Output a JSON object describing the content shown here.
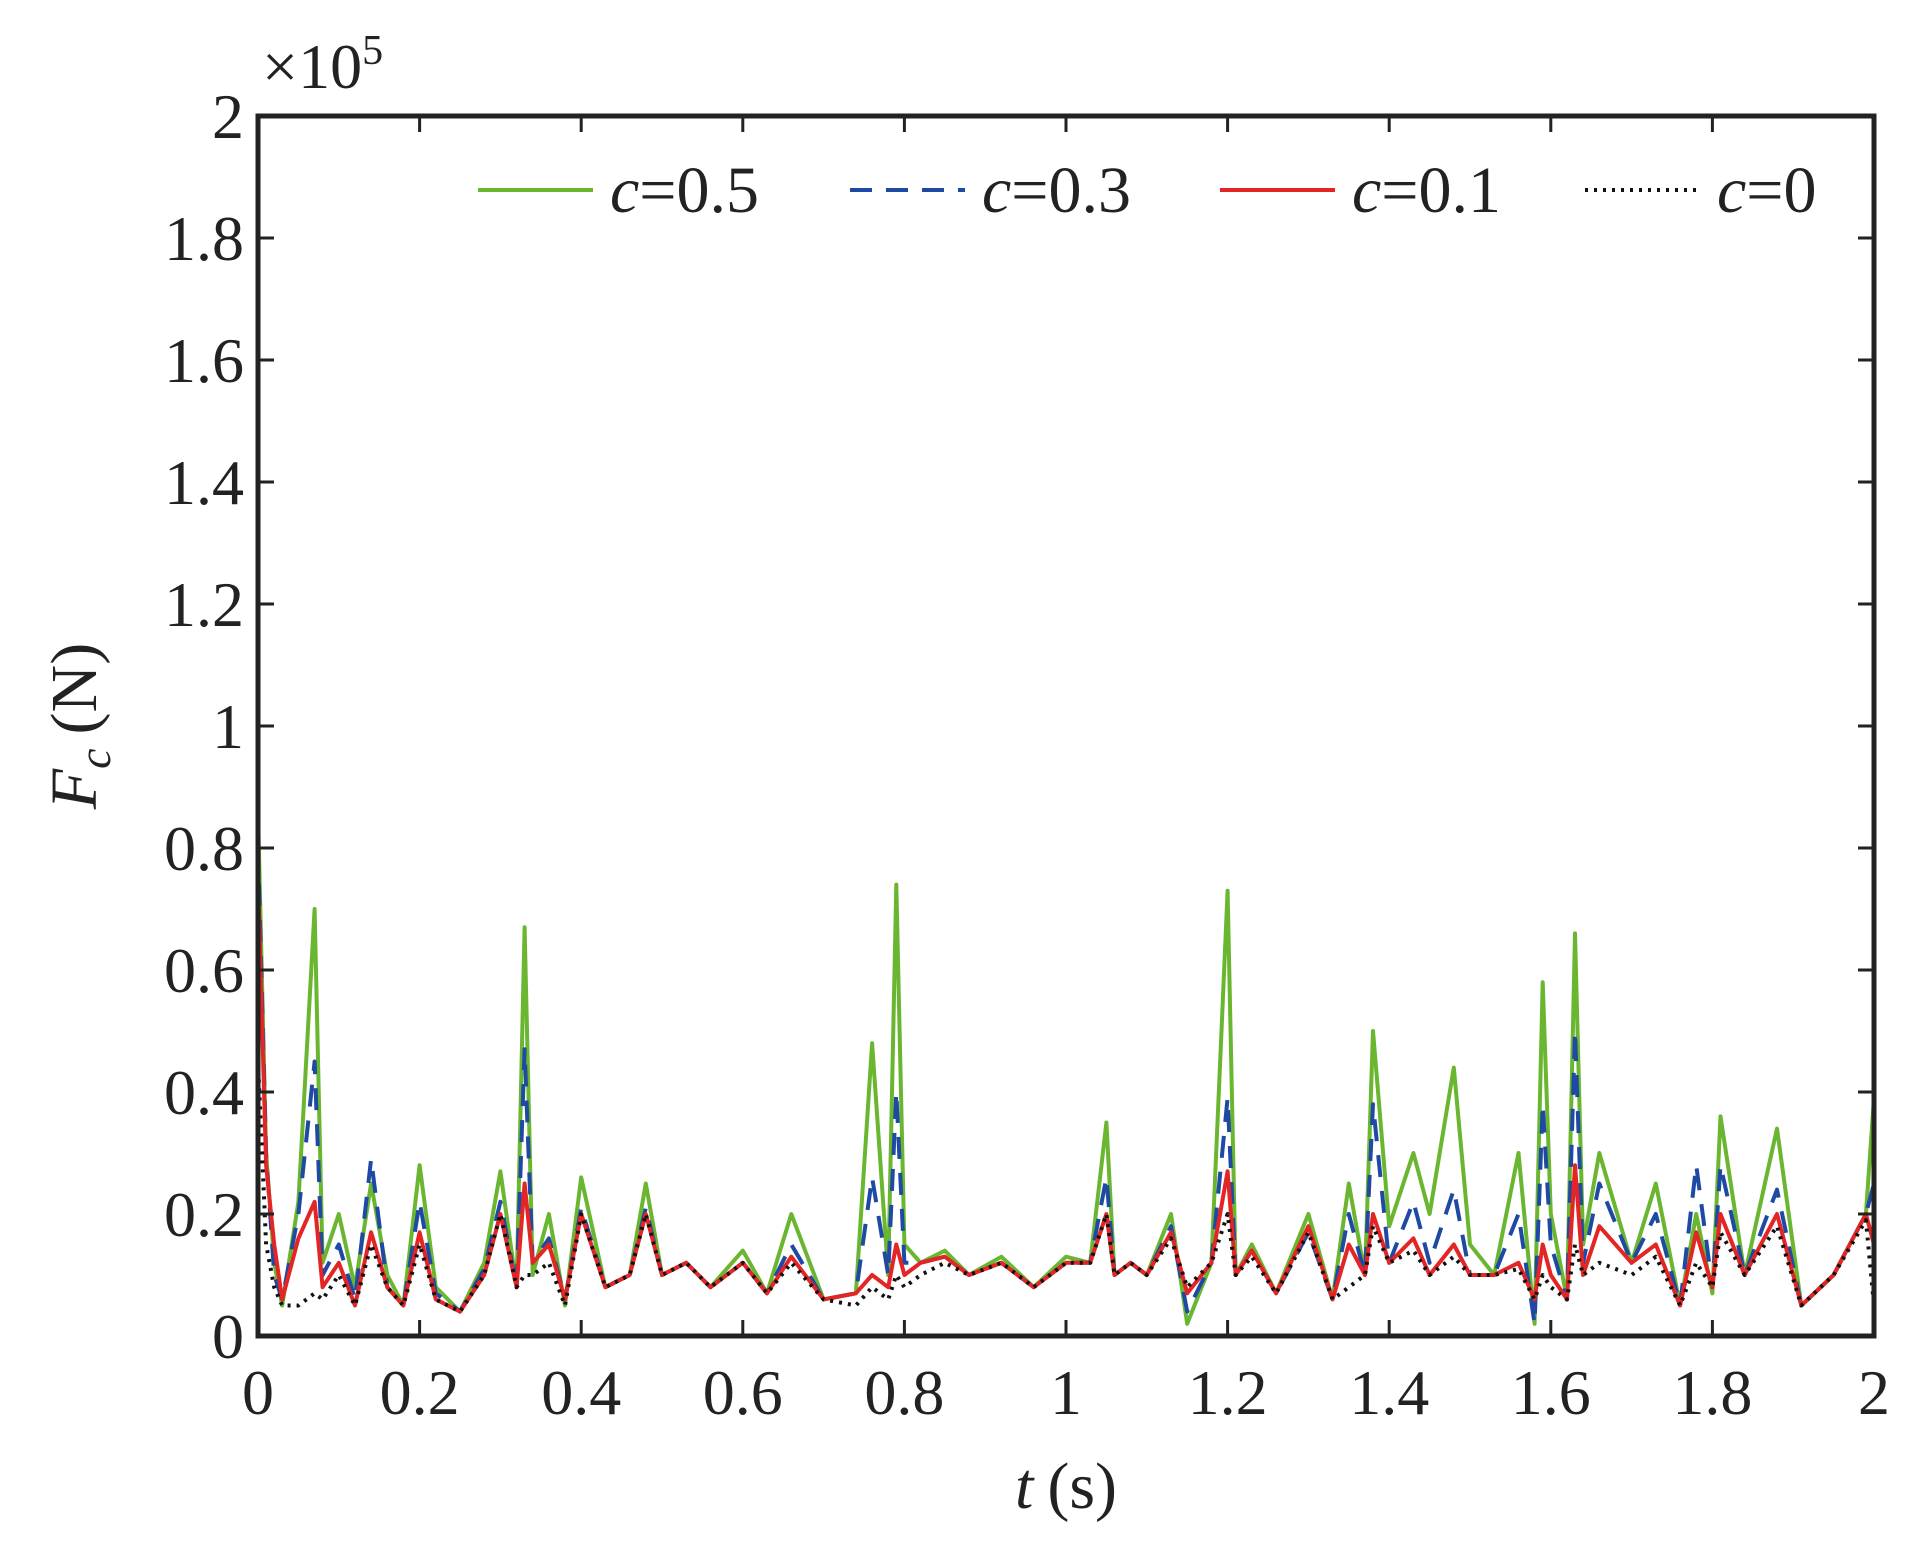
{
  "chart_data": {
    "type": "line",
    "title": "",
    "xlabel": {
      "var": "t",
      "unit": "(s)"
    },
    "ylabel": {
      "var": "F",
      "sub": "c",
      "unit": "(N)"
    },
    "multiplier": {
      "prefix": "×10",
      "exp": "5"
    },
    "xlim": [
      0,
      2
    ],
    "ylim": [
      0,
      2
    ],
    "xticks": [
      0,
      0.2,
      0.4,
      0.6,
      0.8,
      1,
      1.2,
      1.4,
      1.6,
      1.8,
      2
    ],
    "xtick_labels": [
      "0",
      "0.2",
      "0.4",
      "0.6",
      "0.8",
      "1",
      "1.2",
      "1.4",
      "1.6",
      "1.8",
      "2"
    ],
    "yticks": [
      0,
      0.2,
      0.4,
      0.6,
      0.8,
      1,
      1.2,
      1.4,
      1.6,
      1.8,
      2
    ],
    "ytick_labels": [
      "0",
      "0.2",
      "0.4",
      "0.6",
      "0.8",
      "1",
      "1.2",
      "1.4",
      "1.6",
      "1.8",
      "2"
    ],
    "grid": false,
    "legend_position": "top-right",
    "series": [
      {
        "name": "c=0.5",
        "var": "c",
        "label": "=0.5",
        "color": "#6ab631",
        "style": "solid",
        "x": [
          0,
          0.01,
          0.02,
          0.03,
          0.05,
          0.07,
          0.08,
          0.1,
          0.12,
          0.14,
          0.16,
          0.18,
          0.2,
          0.22,
          0.25,
          0.28,
          0.3,
          0.32,
          0.33,
          0.34,
          0.36,
          0.38,
          0.4,
          0.43,
          0.46,
          0.48,
          0.5,
          0.53,
          0.56,
          0.6,
          0.63,
          0.66,
          0.7,
          0.74,
          0.76,
          0.78,
          0.79,
          0.8,
          0.82,
          0.85,
          0.88,
          0.92,
          0.96,
          1,
          1.03,
          1.05,
          1.06,
          1.08,
          1.1,
          1.13,
          1.15,
          1.18,
          1.2,
          1.21,
          1.23,
          1.26,
          1.3,
          1.33,
          1.35,
          1.37,
          1.38,
          1.4,
          1.43,
          1.45,
          1.48,
          1.5,
          1.53,
          1.56,
          1.58,
          1.59,
          1.6,
          1.62,
          1.63,
          1.64,
          1.66,
          1.7,
          1.73,
          1.76,
          1.78,
          1.8,
          1.81,
          1.84,
          1.88,
          1.91,
          1.95,
          1.99,
          2
        ],
        "y": [
          0.86,
          0.3,
          0.12,
          0.05,
          0.22,
          0.7,
          0.12,
          0.2,
          0.08,
          0.25,
          0.1,
          0.05,
          0.28,
          0.08,
          0.04,
          0.12,
          0.27,
          0.08,
          0.67,
          0.1,
          0.2,
          0.05,
          0.26,
          0.08,
          0.1,
          0.25,
          0.1,
          0.12,
          0.08,
          0.14,
          0.07,
          0.2,
          0.06,
          0.07,
          0.48,
          0.1,
          0.74,
          0.15,
          0.12,
          0.14,
          0.1,
          0.13,
          0.08,
          0.13,
          0.12,
          0.35,
          0.1,
          0.12,
          0.1,
          0.2,
          0.02,
          0.12,
          0.73,
          0.1,
          0.15,
          0.07,
          0.2,
          0.06,
          0.25,
          0.1,
          0.5,
          0.18,
          0.3,
          0.2,
          0.44,
          0.15,
          0.1,
          0.3,
          0.02,
          0.58,
          0.2,
          0.06,
          0.66,
          0.15,
          0.3,
          0.12,
          0.25,
          0.05,
          0.2,
          0.07,
          0.36,
          0.1,
          0.34,
          0.05,
          0.1,
          0.2,
          0.39
        ]
      },
      {
        "name": "c=0.3",
        "var": "c",
        "label": "=0.3",
        "color": "#1f4aa3",
        "style": "dashed",
        "x": [
          0,
          0.01,
          0.02,
          0.03,
          0.05,
          0.07,
          0.08,
          0.1,
          0.12,
          0.14,
          0.16,
          0.18,
          0.2,
          0.22,
          0.25,
          0.28,
          0.3,
          0.32,
          0.33,
          0.34,
          0.36,
          0.38,
          0.4,
          0.43,
          0.46,
          0.48,
          0.5,
          0.53,
          0.56,
          0.6,
          0.63,
          0.66,
          0.7,
          0.74,
          0.76,
          0.78,
          0.79,
          0.8,
          0.82,
          0.85,
          0.88,
          0.92,
          0.96,
          1,
          1.03,
          1.05,
          1.06,
          1.08,
          1.1,
          1.13,
          1.15,
          1.18,
          1.2,
          1.21,
          1.23,
          1.26,
          1.3,
          1.33,
          1.35,
          1.37,
          1.38,
          1.4,
          1.43,
          1.45,
          1.48,
          1.5,
          1.53,
          1.56,
          1.58,
          1.59,
          1.6,
          1.62,
          1.63,
          1.64,
          1.66,
          1.7,
          1.73,
          1.76,
          1.78,
          1.8,
          1.81,
          1.84,
          1.88,
          1.91,
          1.95,
          1.99,
          2
        ],
        "y": [
          0.8,
          0.3,
          0.1,
          0.06,
          0.2,
          0.45,
          0.1,
          0.15,
          0.06,
          0.29,
          0.08,
          0.05,
          0.22,
          0.07,
          0.04,
          0.11,
          0.22,
          0.08,
          0.47,
          0.12,
          0.16,
          0.06,
          0.21,
          0.08,
          0.1,
          0.21,
          0.1,
          0.12,
          0.08,
          0.12,
          0.07,
          0.15,
          0.06,
          0.07,
          0.26,
          0.1,
          0.4,
          0.12,
          0.12,
          0.13,
          0.1,
          0.12,
          0.08,
          0.12,
          0.12,
          0.26,
          0.1,
          0.12,
          0.1,
          0.18,
          0.04,
          0.12,
          0.39,
          0.1,
          0.14,
          0.07,
          0.17,
          0.06,
          0.2,
          0.1,
          0.38,
          0.12,
          0.22,
          0.12,
          0.24,
          0.1,
          0.1,
          0.2,
          0.02,
          0.38,
          0.15,
          0.06,
          0.5,
          0.12,
          0.25,
          0.12,
          0.2,
          0.05,
          0.28,
          0.08,
          0.28,
          0.1,
          0.24,
          0.05,
          0.1,
          0.2,
          0.25
        ]
      },
      {
        "name": "c=0.1",
        "var": "c",
        "label": "=0.1",
        "color": "#e42525",
        "style": "solid",
        "x": [
          0,
          0.01,
          0.02,
          0.03,
          0.05,
          0.07,
          0.08,
          0.1,
          0.12,
          0.14,
          0.16,
          0.18,
          0.2,
          0.22,
          0.25,
          0.28,
          0.3,
          0.32,
          0.33,
          0.34,
          0.36,
          0.38,
          0.4,
          0.43,
          0.46,
          0.48,
          0.5,
          0.53,
          0.56,
          0.6,
          0.63,
          0.66,
          0.7,
          0.74,
          0.76,
          0.78,
          0.79,
          0.8,
          0.82,
          0.85,
          0.88,
          0.92,
          0.96,
          1,
          1.03,
          1.05,
          1.06,
          1.08,
          1.1,
          1.13,
          1.15,
          1.18,
          1.2,
          1.21,
          1.23,
          1.26,
          1.3,
          1.33,
          1.35,
          1.37,
          1.38,
          1.4,
          1.43,
          1.45,
          1.48,
          1.5,
          1.53,
          1.56,
          1.58,
          1.59,
          1.6,
          1.62,
          1.63,
          1.64,
          1.66,
          1.7,
          1.73,
          1.76,
          1.78,
          1.8,
          1.81,
          1.84,
          1.88,
          1.91,
          1.95,
          1.99,
          2
        ],
        "y": [
          0.75,
          0.28,
          0.15,
          0.06,
          0.16,
          0.22,
          0.08,
          0.12,
          0.05,
          0.17,
          0.08,
          0.05,
          0.17,
          0.06,
          0.04,
          0.1,
          0.2,
          0.08,
          0.25,
          0.12,
          0.15,
          0.06,
          0.2,
          0.08,
          0.1,
          0.2,
          0.1,
          0.12,
          0.08,
          0.12,
          0.07,
          0.13,
          0.06,
          0.07,
          0.1,
          0.08,
          0.15,
          0.1,
          0.12,
          0.13,
          0.1,
          0.12,
          0.08,
          0.12,
          0.12,
          0.2,
          0.1,
          0.12,
          0.1,
          0.17,
          0.07,
          0.12,
          0.27,
          0.1,
          0.14,
          0.07,
          0.18,
          0.06,
          0.15,
          0.1,
          0.2,
          0.12,
          0.16,
          0.1,
          0.15,
          0.1,
          0.1,
          0.12,
          0.06,
          0.15,
          0.1,
          0.06,
          0.28,
          0.1,
          0.18,
          0.12,
          0.15,
          0.05,
          0.17,
          0.08,
          0.2,
          0.1,
          0.2,
          0.05,
          0.1,
          0.2,
          0.15
        ]
      },
      {
        "name": "c=0",
        "var": "c",
        "label": "=0",
        "color": "#111111",
        "style": "dotted",
        "x": [
          0,
          0.01,
          0.02,
          0.03,
          0.05,
          0.07,
          0.08,
          0.1,
          0.12,
          0.14,
          0.16,
          0.18,
          0.2,
          0.22,
          0.25,
          0.28,
          0.3,
          0.32,
          0.33,
          0.34,
          0.36,
          0.38,
          0.4,
          0.43,
          0.46,
          0.48,
          0.5,
          0.53,
          0.56,
          0.6,
          0.63,
          0.66,
          0.7,
          0.74,
          0.76,
          0.78,
          0.79,
          0.8,
          0.82,
          0.85,
          0.88,
          0.92,
          0.96,
          1,
          1.03,
          1.05,
          1.06,
          1.08,
          1.1,
          1.13,
          1.15,
          1.18,
          1.2,
          1.21,
          1.23,
          1.26,
          1.3,
          1.33,
          1.35,
          1.37,
          1.38,
          1.4,
          1.43,
          1.45,
          1.48,
          1.5,
          1.53,
          1.56,
          1.58,
          1.59,
          1.6,
          1.62,
          1.63,
          1.64,
          1.66,
          1.7,
          1.73,
          1.76,
          1.78,
          1.8,
          1.81,
          1.84,
          1.88,
          1.91,
          1.95,
          1.99,
          2
        ],
        "y": [
          0.45,
          0.15,
          0.08,
          0.05,
          0.05,
          0.07,
          0.06,
          0.1,
          0.05,
          0.15,
          0.08,
          0.05,
          0.15,
          0.06,
          0.04,
          0.1,
          0.2,
          0.08,
          0.1,
          0.1,
          0.12,
          0.05,
          0.2,
          0.08,
          0.1,
          0.2,
          0.1,
          0.12,
          0.08,
          0.12,
          0.07,
          0.12,
          0.06,
          0.05,
          0.08,
          0.06,
          0.1,
          0.08,
          0.1,
          0.12,
          0.1,
          0.12,
          0.08,
          0.12,
          0.12,
          0.2,
          0.1,
          0.12,
          0.1,
          0.16,
          0.08,
          0.12,
          0.2,
          0.1,
          0.13,
          0.07,
          0.17,
          0.06,
          0.08,
          0.1,
          0.18,
          0.12,
          0.14,
          0.1,
          0.13,
          0.1,
          0.1,
          0.11,
          0.06,
          0.1,
          0.08,
          0.06,
          0.15,
          0.1,
          0.12,
          0.1,
          0.13,
          0.05,
          0.12,
          0.08,
          0.17,
          0.1,
          0.18,
          0.05,
          0.1,
          0.19,
          0.05
        ]
      }
    ]
  }
}
